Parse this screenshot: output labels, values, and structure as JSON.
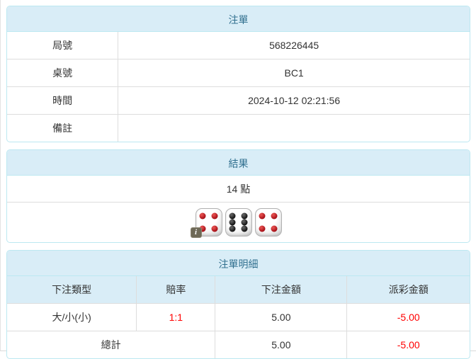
{
  "theme": {
    "header_bg": "#d9edf7",
    "header_text": "#31708f",
    "panel_border": "#bce8f1",
    "cell_border": "#dddddd",
    "text": "#333333",
    "negative_text": "#ff0000"
  },
  "bet_slip": {
    "title": "注單",
    "rows": [
      {
        "label": "局號",
        "value": "568226445"
      },
      {
        "label": "桌號",
        "value": "BC1"
      },
      {
        "label": "時間",
        "value": "2024-10-12 02:21:56"
      },
      {
        "label": "備註",
        "value": ""
      }
    ]
  },
  "result": {
    "title": "結果",
    "points": "14 點",
    "dice": [
      {
        "value": 4,
        "color": "red"
      },
      {
        "value": 6,
        "color": "black"
      },
      {
        "value": 4,
        "color": "red"
      }
    ],
    "info_icon": "i"
  },
  "bet_detail": {
    "title": "注單明細",
    "columns": [
      "下注類型",
      "賠率",
      "下注金額",
      "派彩金額"
    ],
    "rows": [
      {
        "bet_type": "大/小(小)",
        "odds": "1:1",
        "bet_amount": "5.00",
        "payout": "-5.00"
      }
    ],
    "total": {
      "label": "總計",
      "bet_amount": "5.00",
      "payout": "-5.00"
    }
  }
}
